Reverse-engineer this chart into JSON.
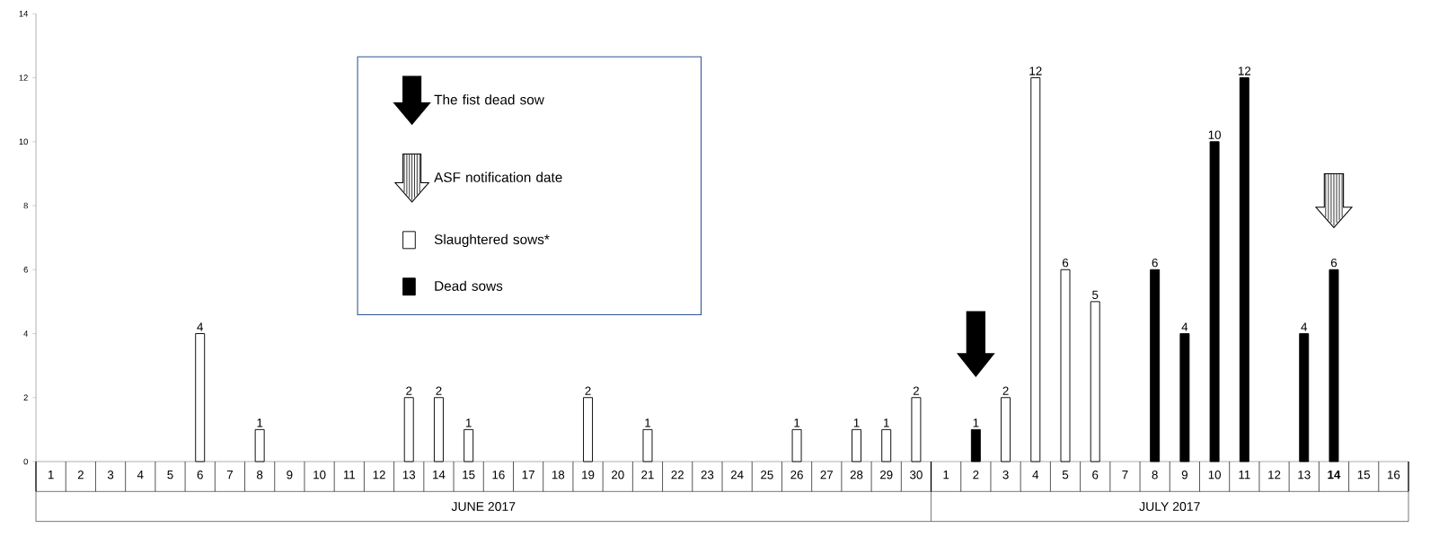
{
  "chart_data": {
    "type": "bar",
    "categories": [
      "1",
      "2",
      "3",
      "4",
      "5",
      "6",
      "7",
      "8",
      "9",
      "10",
      "11",
      "12",
      "13",
      "14",
      "15",
      "16",
      "17",
      "18",
      "19",
      "20",
      "21",
      "22",
      "23",
      "24",
      "25",
      "26",
      "27",
      "28",
      "29",
      "30",
      "1",
      "2",
      "3",
      "4",
      "5",
      "6",
      "7",
      "8",
      "9",
      "10",
      "11",
      "12",
      "13",
      "**14**",
      "15",
      "16"
    ],
    "series": [
      {
        "name": "Slaughtered sows*",
        "color": "#ffffff",
        "values": [
          null,
          null,
          null,
          null,
          null,
          4,
          null,
          1,
          null,
          null,
          null,
          null,
          2,
          2,
          1,
          null,
          null,
          null,
          2,
          null,
          1,
          null,
          null,
          null,
          null,
          1,
          null,
          1,
          1,
          2,
          null,
          null,
          2,
          12,
          6,
          5,
          null,
          null,
          null,
          null,
          null,
          null,
          null,
          null,
          null,
          null
        ]
      },
      {
        "name": "Dead sows",
        "color": "#000000",
        "values": [
          null,
          null,
          null,
          null,
          null,
          null,
          null,
          null,
          null,
          null,
          null,
          null,
          null,
          null,
          null,
          null,
          null,
          null,
          null,
          null,
          null,
          null,
          null,
          null,
          null,
          null,
          null,
          null,
          null,
          null,
          null,
          1,
          null,
          null,
          null,
          null,
          null,
          6,
          4,
          10,
          12,
          null,
          4,
          6,
          null,
          null
        ]
      }
    ],
    "ylim": [
      0,
      14
    ],
    "yticks": [
      0,
      2,
      4,
      6,
      8,
      10,
      12,
      14
    ],
    "data_labels": true,
    "legend": "left",
    "annotations": [
      "The fist dead sow",
      "ASF notification date",
      "JUNE  2017",
      "JULY  2017"
    ]
  }
}
